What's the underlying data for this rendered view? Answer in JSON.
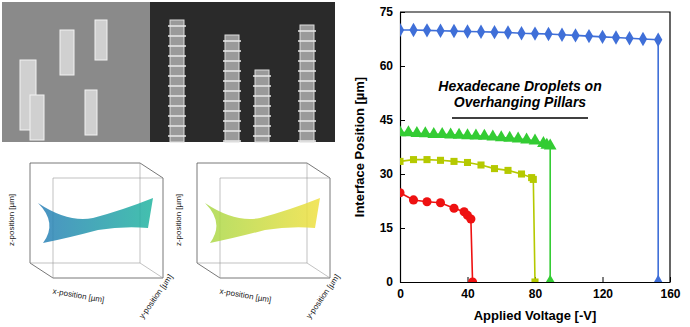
{
  "chart_data": {
    "type": "line",
    "x_label": "Applied Voltage [-V]",
    "y_label": "Interface Position [µm]",
    "annotation": [
      "Hexadecane Droplets on",
      "Overhanging Pillars"
    ],
    "xlim": [
      0,
      160
    ],
    "xticks": [
      0,
      40,
      80,
      120,
      160
    ],
    "ylim": [
      0,
      75
    ],
    "yticks": [
      0,
      15,
      30,
      45,
      60,
      75
    ],
    "grid": false,
    "series": [
      {
        "color": "#3f6fd8",
        "marker": "diamond",
        "line_style": "solid",
        "x": [
          0,
          8,
          16,
          24,
          32,
          40,
          48,
          56,
          64,
          72,
          80,
          88,
          96,
          104,
          112,
          120,
          128,
          136,
          144,
          153,
          153
        ],
        "values": [
          70,
          70,
          69.9,
          69.8,
          69.7,
          69.6,
          69.5,
          69.4,
          69.3,
          69.1,
          69,
          68.9,
          68.7,
          68.5,
          68.3,
          68.1,
          67.9,
          67.7,
          67.5,
          67.3,
          0
        ]
      },
      {
        "color": "#33cc33",
        "marker": "triangle",
        "line_style": "solid",
        "x": [
          0,
          5,
          10,
          15,
          20,
          25,
          30,
          35,
          40,
          45,
          50,
          55,
          60,
          65,
          70,
          75,
          80,
          85,
          87,
          89,
          89
        ],
        "values": [
          41.5,
          41.5,
          41.3,
          41.2,
          41,
          41,
          40.9,
          40.8,
          40.7,
          40.6,
          40.5,
          40.3,
          40.1,
          40,
          39.8,
          39.5,
          39.2,
          38.5,
          38,
          37.8,
          0
        ]
      },
      {
        "color": "#b5c900",
        "marker": "square",
        "line_style": "solid",
        "x": [
          0,
          8,
          16,
          24,
          32,
          40,
          48,
          56,
          64,
          72,
          78,
          79,
          80
        ],
        "values": [
          33.5,
          34,
          34,
          33.8,
          33.5,
          33.2,
          32.5,
          31.5,
          31,
          30,
          29,
          28.5,
          0
        ]
      },
      {
        "color": "#ee1111",
        "marker": "circle",
        "line_style": "solid",
        "x": [
          0,
          8,
          16,
          24,
          32,
          38,
          40,
          42,
          43
        ],
        "values": [
          24.8,
          22.8,
          22.3,
          22,
          20.5,
          19.5,
          18.5,
          17.5,
          0
        ]
      }
    ]
  },
  "panels": [
    {
      "x_label": "x-position [µm]",
      "y_label": "y-position [µm]",
      "z_label": "z-position [µm]"
    },
    {
      "x_label": "x-position [µm]",
      "y_label": "y-position [µm]",
      "z_label": "z-position [µm]"
    }
  ]
}
